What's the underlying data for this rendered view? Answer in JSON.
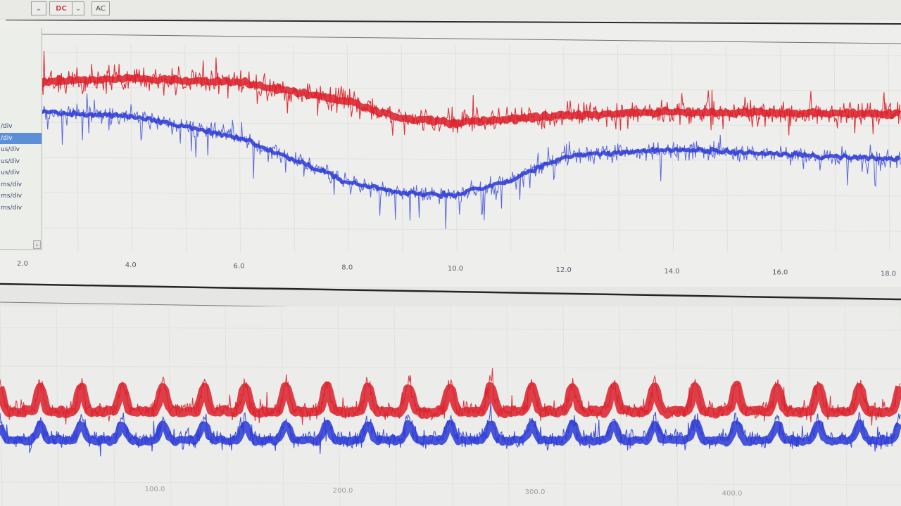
{
  "toolbar": {
    "coupling_label": "DC",
    "ac_label": "AC"
  },
  "timebase_list": {
    "items": [
      "",
      "",
      "",
      "",
      "",
      "",
      "",
      "",
      "/div",
      "/div",
      "us/div",
      "us/div",
      "us/div",
      "ms/div",
      "ms/div",
      "ms/div"
    ],
    "selected_index": 9
  },
  "chart_data": [
    {
      "type": "line",
      "panel": "top",
      "x_tick_labels": [
        "2.0",
        "4.0",
        "6.0",
        "8.0",
        "10.0",
        "12.0",
        "14.0",
        "16.0",
        "18.0"
      ],
      "xlim": [
        2.0,
        18.0
      ],
      "grid": true,
      "series": [
        {
          "color": "#dc1f2a",
          "x": [
            2,
            4,
            6,
            8,
            9,
            10,
            11,
            12,
            14,
            16,
            18
          ],
          "level": [
            0.82,
            0.84,
            0.83,
            0.74,
            0.66,
            0.64,
            0.66,
            0.68,
            0.7,
            0.7,
            0.7
          ]
        },
        {
          "color": "#2b3ad6",
          "x": [
            2,
            4,
            6,
            8,
            9,
            10,
            11,
            12,
            14,
            16,
            18
          ],
          "level": [
            0.68,
            0.66,
            0.56,
            0.35,
            0.3,
            0.29,
            0.36,
            0.48,
            0.52,
            0.5,
            0.48
          ]
        }
      ]
    },
    {
      "type": "line",
      "panel": "bottom",
      "x_tick_labels": [
        "100.0",
        "200.0",
        "300.0",
        "400.0"
      ],
      "grid": true,
      "series": [
        {
          "color": "#dc1f2a",
          "periodic_peaks": 22,
          "level": 0.55
        },
        {
          "color": "#2b3ad6",
          "periodic_peaks": 22,
          "level": 0.38
        }
      ]
    }
  ]
}
